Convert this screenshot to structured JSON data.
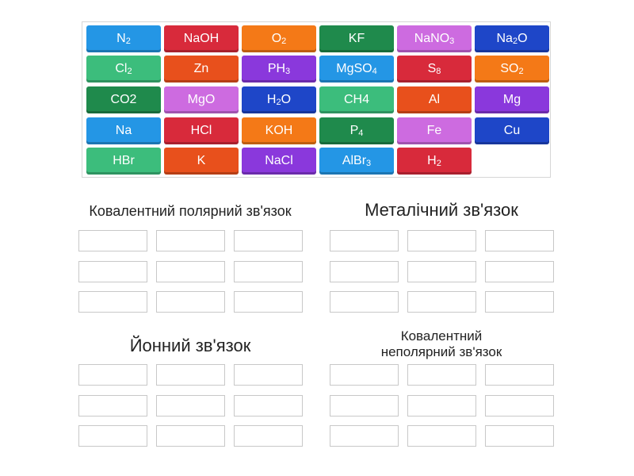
{
  "tiles": [
    {
      "parts": [
        [
          "N",
          ""
        ],
        [
          "2",
          "sub"
        ]
      ],
      "color": "#2496e5"
    },
    {
      "parts": [
        [
          "NaOH",
          ""
        ]
      ],
      "color": "#d82a3b"
    },
    {
      "parts": [
        [
          "O",
          ""
        ],
        [
          "2",
          "sub"
        ]
      ],
      "color": "#f47917"
    },
    {
      "parts": [
        [
          "KF",
          ""
        ]
      ],
      "color": "#1f8a4c"
    },
    {
      "parts": [
        [
          "NaNO",
          ""
        ],
        [
          "3",
          "sub"
        ]
      ],
      "color": "#cd6be0"
    },
    {
      "parts": [
        [
          "Na",
          ""
        ],
        [
          "2",
          "sub"
        ],
        [
          "O",
          ""
        ]
      ],
      "color": "#1e46c8"
    },
    {
      "parts": [
        [
          "Cl",
          ""
        ],
        [
          "2",
          "sub"
        ]
      ],
      "color": "#3cbd7c"
    },
    {
      "parts": [
        [
          "Zn",
          ""
        ]
      ],
      "color": "#e8501c"
    },
    {
      "parts": [
        [
          "PH",
          ""
        ],
        [
          "3",
          "sub"
        ]
      ],
      "color": "#8a38dc"
    },
    {
      "parts": [
        [
          "MgSO",
          ""
        ],
        [
          "4",
          "sub"
        ]
      ],
      "color": "#2496e5"
    },
    {
      "parts": [
        [
          "S",
          ""
        ],
        [
          "8",
          "sub"
        ]
      ],
      "color": "#d82a3b"
    },
    {
      "parts": [
        [
          "SO",
          ""
        ],
        [
          "2",
          "sub"
        ]
      ],
      "color": "#f47917"
    },
    {
      "parts": [
        [
          "CO2",
          ""
        ]
      ],
      "color": "#1f8a4c"
    },
    {
      "parts": [
        [
          "MgO",
          ""
        ]
      ],
      "color": "#cd6be0"
    },
    {
      "parts": [
        [
          "H",
          ""
        ],
        [
          "2",
          "sub"
        ],
        [
          "O",
          ""
        ]
      ],
      "color": "#1e46c8"
    },
    {
      "parts": [
        [
          "CH4",
          ""
        ]
      ],
      "color": "#3cbd7c"
    },
    {
      "parts": [
        [
          "Al",
          ""
        ]
      ],
      "color": "#e8501c"
    },
    {
      "parts": [
        [
          "Mg",
          ""
        ]
      ],
      "color": "#8a38dc"
    },
    {
      "parts": [
        [
          "Na",
          ""
        ]
      ],
      "color": "#2496e5"
    },
    {
      "parts": [
        [
          "HCl",
          ""
        ]
      ],
      "color": "#d82a3b"
    },
    {
      "parts": [
        [
          "KOH",
          ""
        ]
      ],
      "color": "#f47917"
    },
    {
      "parts": [
        [
          "P",
          ""
        ],
        [
          "4",
          "sub"
        ]
      ],
      "color": "#1f8a4c"
    },
    {
      "parts": [
        [
          "Fe",
          ""
        ]
      ],
      "color": "#cd6be0"
    },
    {
      "parts": [
        [
          "Cu",
          ""
        ]
      ],
      "color": "#1e46c8"
    },
    {
      "parts": [
        [
          "HBr",
          ""
        ]
      ],
      "color": "#3cbd7c"
    },
    {
      "parts": [
        [
          "K",
          ""
        ]
      ],
      "color": "#e8501c"
    },
    {
      "parts": [
        [
          "NaCl",
          ""
        ]
      ],
      "color": "#8a38dc"
    },
    {
      "parts": [
        [
          "AlBr",
          ""
        ],
        [
          "3",
          "sub"
        ]
      ],
      "color": "#2496e5"
    },
    {
      "parts": [
        [
          "H",
          ""
        ],
        [
          "2",
          "sub"
        ]
      ],
      "color": "#d82a3b"
    }
  ],
  "groups": [
    {
      "name": "covalent-polar",
      "title": "Ковалентний полярний зв'язок"
    },
    {
      "name": "metallic",
      "title": "Металічний зв'язок"
    },
    {
      "name": "ionic",
      "title": "Йонний зв'язок"
    },
    {
      "name": "covalent-nonpolar",
      "title": "Ковалентний\nнеполярний зв'язок"
    }
  ]
}
